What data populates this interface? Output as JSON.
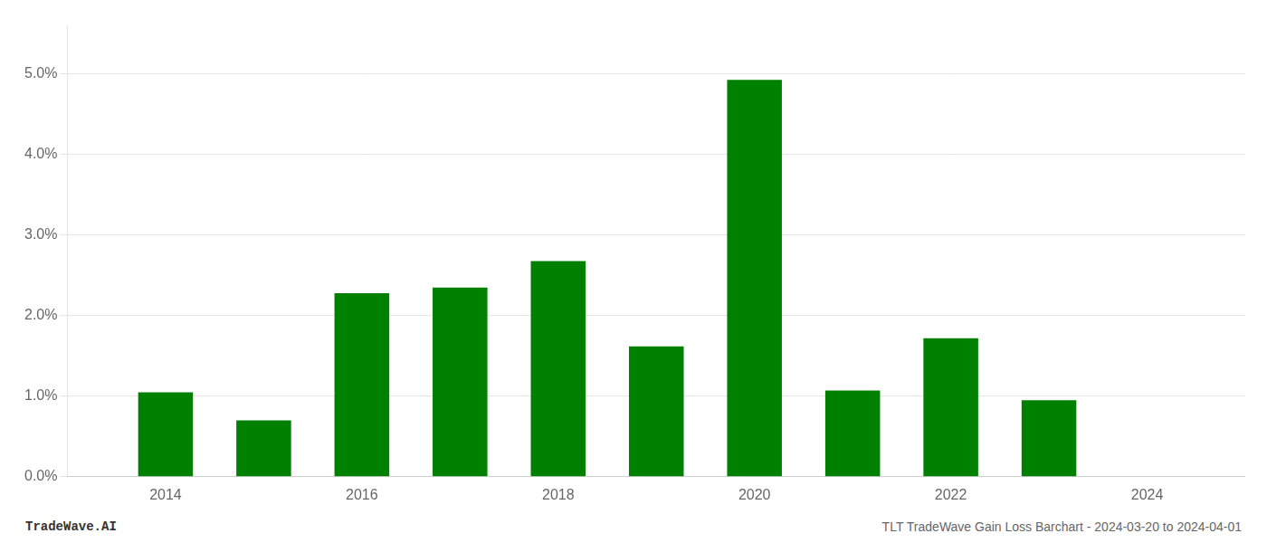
{
  "chart_data": {
    "type": "bar",
    "x": [
      2014,
      2015,
      2016,
      2017,
      2018,
      2019,
      2020,
      2021,
      2022,
      2023,
      2024
    ],
    "values": [
      0.0105,
      0.007,
      0.0228,
      0.0235,
      0.0268,
      0.0162,
      0.0493,
      0.0107,
      0.0172,
      0.0095,
      0.0
    ],
    "color": "#008000",
    "xlim": [
      2013.0,
      2025.0
    ],
    "xticks": [
      2014,
      2016,
      2018,
      2020,
      2022,
      2024
    ],
    "ylim": [
      0,
      0.056
    ],
    "yticks": [
      {
        "value": 0.0,
        "label": "0.0%"
      },
      {
        "value": 0.01,
        "label": "1.0%"
      },
      {
        "value": 0.02,
        "label": "2.0%"
      },
      {
        "value": 0.03,
        "label": "3.0%"
      },
      {
        "value": 0.04,
        "label": "4.0%"
      },
      {
        "value": 0.05,
        "label": "5.0%"
      }
    ],
    "grid": true,
    "annotations": [
      "TradeWave.AI",
      "TLT TradeWave Gain Loss Barchart - 2024-03-20 to 2024-04-01"
    ]
  }
}
